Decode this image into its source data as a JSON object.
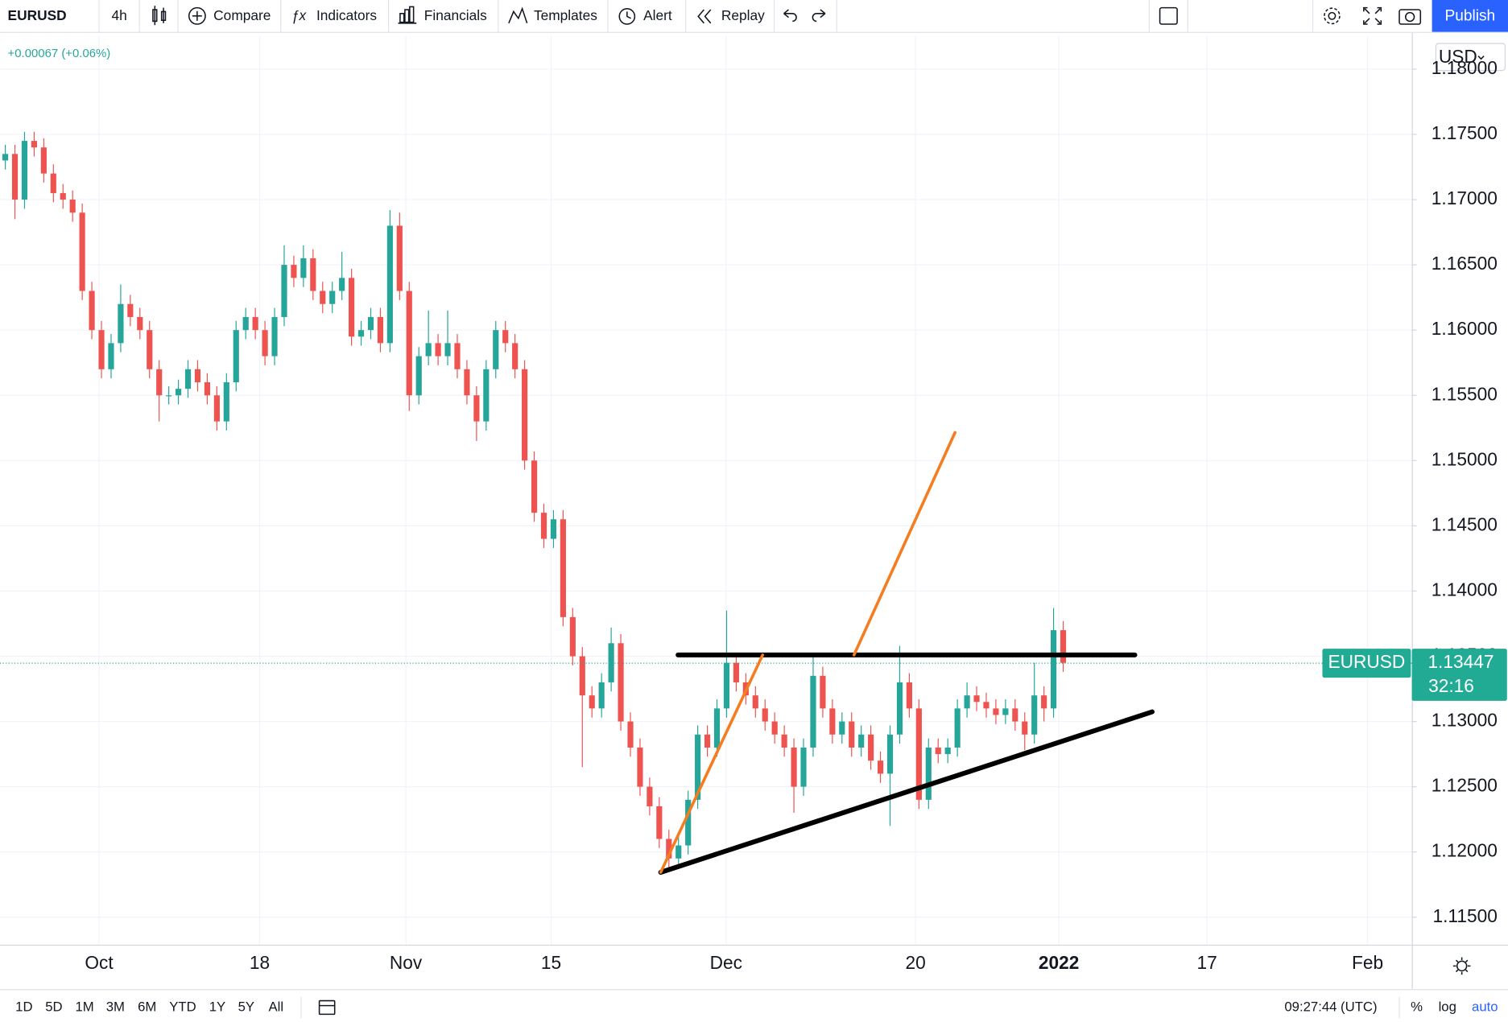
{
  "toolbar": {
    "symbol": "EURUSD",
    "interval": "4h",
    "buttons": [
      "Compare",
      "Indicators",
      "Financials",
      "Templates",
      "Alert",
      "Replay"
    ],
    "publish": "Publish"
  },
  "chart_data": {
    "type": "candlestick",
    "change": "+0.00067 (+0.06%)",
    "currency": "USD",
    "up_color": "#26a69a",
    "down_color": "#ef5350",
    "ohlc": [
      [
        1.173,
        1.1742,
        1.1723,
        1.1735
      ],
      [
        1.1735,
        1.1742,
        1.1685,
        1.17
      ],
      [
        1.17,
        1.1752,
        1.1693,
        1.1745
      ],
      [
        1.1745,
        1.1752,
        1.1733,
        1.174
      ],
      [
        1.174,
        1.1747,
        1.1713,
        1.172
      ],
      [
        1.172,
        1.1727,
        1.1698,
        1.1705
      ],
      [
        1.1705,
        1.1712,
        1.1693,
        1.17
      ],
      [
        1.17,
        1.1707,
        1.1683,
        1.169
      ],
      [
        1.169,
        1.1697,
        1.1623,
        1.163
      ],
      [
        1.163,
        1.1637,
        1.1593,
        1.16
      ],
      [
        1.16,
        1.1607,
        1.1563,
        1.157
      ],
      [
        1.157,
        1.1597,
        1.1563,
        1.159
      ],
      [
        1.159,
        1.1635,
        1.1583,
        1.162
      ],
      [
        1.162,
        1.1627,
        1.1603,
        1.161
      ],
      [
        1.161,
        1.1617,
        1.1593,
        1.16
      ],
      [
        1.16,
        1.1607,
        1.1563,
        1.157
      ],
      [
        1.157,
        1.1577,
        1.153,
        1.155
      ],
      [
        1.155,
        1.1557,
        1.1543,
        1.155
      ],
      [
        1.155,
        1.1562,
        1.1543,
        1.1555
      ],
      [
        1.1555,
        1.1577,
        1.1548,
        1.157
      ],
      [
        1.157,
        1.1577,
        1.1553,
        1.156
      ],
      [
        1.156,
        1.1567,
        1.1543,
        1.155
      ],
      [
        1.155,
        1.1557,
        1.1523,
        1.153
      ],
      [
        1.153,
        1.1567,
        1.1523,
        1.156
      ],
      [
        1.156,
        1.1607,
        1.1553,
        1.16
      ],
      [
        1.16,
        1.1617,
        1.1593,
        1.161
      ],
      [
        1.161,
        1.1617,
        1.1593,
        1.16
      ],
      [
        1.16,
        1.1607,
        1.1573,
        1.158
      ],
      [
        1.158,
        1.1617,
        1.1573,
        1.161
      ],
      [
        1.161,
        1.1665,
        1.1603,
        1.165
      ],
      [
        1.165,
        1.1657,
        1.1633,
        1.164
      ],
      [
        1.164,
        1.1665,
        1.1633,
        1.1655
      ],
      [
        1.1655,
        1.1662,
        1.1623,
        1.163
      ],
      [
        1.163,
        1.1637,
        1.1613,
        1.162
      ],
      [
        1.162,
        1.1637,
        1.1613,
        1.163
      ],
      [
        1.163,
        1.166,
        1.1623,
        1.164
      ],
      [
        1.164,
        1.1647,
        1.1588,
        1.1595
      ],
      [
        1.1595,
        1.1607,
        1.1588,
        1.16
      ],
      [
        1.16,
        1.1617,
        1.1593,
        1.161
      ],
      [
        1.161,
        1.1617,
        1.1583,
        1.159
      ],
      [
        1.159,
        1.1692,
        1.1583,
        1.168
      ],
      [
        1.168,
        1.169,
        1.1623,
        1.163
      ],
      [
        1.163,
        1.1637,
        1.1538,
        1.155
      ],
      [
        1.155,
        1.1587,
        1.1543,
        1.158
      ],
      [
        1.158,
        1.1615,
        1.1573,
        1.159
      ],
      [
        1.159,
        1.1597,
        1.1573,
        1.158
      ],
      [
        1.158,
        1.1615,
        1.1573,
        1.159
      ],
      [
        1.159,
        1.1597,
        1.1563,
        1.157
      ],
      [
        1.157,
        1.1577,
        1.1543,
        1.155
      ],
      [
        1.155,
        1.1557,
        1.1515,
        1.153
      ],
      [
        1.153,
        1.1577,
        1.1523,
        1.157
      ],
      [
        1.157,
        1.1607,
        1.1563,
        1.16
      ],
      [
        1.16,
        1.1607,
        1.1583,
        1.159
      ],
      [
        1.159,
        1.1597,
        1.1563,
        1.157
      ],
      [
        1.157,
        1.1577,
        1.1493,
        1.15
      ],
      [
        1.15,
        1.1507,
        1.1453,
        1.146
      ],
      [
        1.146,
        1.1467,
        1.1433,
        1.144
      ],
      [
        1.144,
        1.1462,
        1.1433,
        1.1455
      ],
      [
        1.1455,
        1.1462,
        1.1373,
        1.138
      ],
      [
        1.138,
        1.1387,
        1.1343,
        1.135
      ],
      [
        1.135,
        1.1357,
        1.1265,
        1.132
      ],
      [
        1.132,
        1.1327,
        1.1303,
        1.131
      ],
      [
        1.131,
        1.1337,
        1.1303,
        1.133
      ],
      [
        1.133,
        1.1372,
        1.1323,
        1.136
      ],
      [
        1.136,
        1.1367,
        1.1293,
        1.13
      ],
      [
        1.13,
        1.1307,
        1.1273,
        1.128
      ],
      [
        1.128,
        1.1287,
        1.1243,
        1.125
      ],
      [
        1.125,
        1.1257,
        1.1228,
        1.1235
      ],
      [
        1.1235,
        1.1242,
        1.1203,
        1.121
      ],
      [
        1.121,
        1.1217,
        1.1185,
        1.1195
      ],
      [
        1.1195,
        1.1212,
        1.1188,
        1.1205
      ],
      [
        1.1205,
        1.1247,
        1.1198,
        1.124
      ],
      [
        1.124,
        1.1297,
        1.1233,
        1.129
      ],
      [
        1.129,
        1.1297,
        1.1273,
        1.128
      ],
      [
        1.128,
        1.1317,
        1.1273,
        1.131
      ],
      [
        1.131,
        1.1385,
        1.1303,
        1.1345
      ],
      [
        1.1345,
        1.1352,
        1.1323,
        1.133
      ],
      [
        1.133,
        1.1337,
        1.1313,
        1.132
      ],
      [
        1.132,
        1.1327,
        1.1303,
        1.131
      ],
      [
        1.131,
        1.1317,
        1.1293,
        1.13
      ],
      [
        1.13,
        1.1307,
        1.1283,
        1.129
      ],
      [
        1.129,
        1.1297,
        1.1273,
        1.128
      ],
      [
        1.128,
        1.1287,
        1.123,
        1.125
      ],
      [
        1.125,
        1.1287,
        1.1243,
        1.128
      ],
      [
        1.128,
        1.135,
        1.1273,
        1.1335
      ],
      [
        1.1335,
        1.1342,
        1.1303,
        1.131
      ],
      [
        1.131,
        1.1317,
        1.1283,
        1.129
      ],
      [
        1.129,
        1.1307,
        1.1283,
        1.13
      ],
      [
        1.13,
        1.1307,
        1.1273,
        1.128
      ],
      [
        1.128,
        1.1297,
        1.1273,
        1.129
      ],
      [
        1.129,
        1.1297,
        1.1263,
        1.127
      ],
      [
        1.127,
        1.1277,
        1.1253,
        1.126
      ],
      [
        1.126,
        1.1297,
        1.122,
        1.129
      ],
      [
        1.129,
        1.1358,
        1.1283,
        1.133
      ],
      [
        1.133,
        1.1337,
        1.1303,
        1.131
      ],
      [
        1.131,
        1.1317,
        1.1233,
        1.124
      ],
      [
        1.124,
        1.1287,
        1.1233,
        1.128
      ],
      [
        1.128,
        1.1287,
        1.1268,
        1.1275
      ],
      [
        1.1275,
        1.1287,
        1.1268,
        1.128
      ],
      [
        1.128,
        1.1317,
        1.1273,
        1.131
      ],
      [
        1.131,
        1.133,
        1.1303,
        1.132
      ],
      [
        1.132,
        1.1327,
        1.1308,
        1.1315
      ],
      [
        1.1315,
        1.1322,
        1.1303,
        1.131
      ],
      [
        1.131,
        1.1317,
        1.1298,
        1.1305
      ],
      [
        1.1305,
        1.1317,
        1.1298,
        1.131
      ],
      [
        1.131,
        1.1317,
        1.1293,
        1.13
      ],
      [
        1.13,
        1.1307,
        1.1278,
        1.129
      ],
      [
        1.129,
        1.1345,
        1.1283,
        1.132
      ],
      [
        1.132,
        1.1327,
        1.13,
        1.131
      ],
      [
        1.131,
        1.1387,
        1.1303,
        1.137
      ],
      [
        1.137,
        1.1377,
        1.1338,
        1.1345
      ]
    ],
    "xlim": [
      -0.5,
      146.3
    ],
    "xticks": [
      {
        "value": 9.8,
        "label": "Oct"
      },
      {
        "value": 26.5,
        "label": "18"
      },
      {
        "value": 41.7,
        "label": "Nov"
      },
      {
        "value": 56.8,
        "label": "15"
      },
      {
        "value": 75,
        "label": "Dec"
      },
      {
        "value": 94.7,
        "label": "20"
      },
      {
        "value": 109.6,
        "label": "2022"
      },
      {
        "value": 125,
        "label": "17"
      },
      {
        "value": 141.7,
        "label": "Feb"
      }
    ],
    "ylim": [
      1.11289,
      1.18256
    ],
    "yticks": [
      {
        "value": 1.115,
        "label": "1.11500"
      },
      {
        "value": 1.12,
        "label": "1.12000"
      },
      {
        "value": 1.125,
        "label": "1.12500"
      },
      {
        "value": 1.13,
        "label": "1.13000"
      },
      {
        "value": 1.135,
        "label": "1.13500"
      },
      {
        "value": 1.14,
        "label": "1.14000"
      },
      {
        "value": 1.145,
        "label": "1.14500"
      },
      {
        "value": 1.15,
        "label": "1.15000"
      },
      {
        "value": 1.155,
        "label": "1.15500"
      },
      {
        "value": 1.16,
        "label": "1.16000"
      },
      {
        "value": 1.165,
        "label": "1.16500"
      },
      {
        "value": 1.17,
        "label": "1.17000"
      },
      {
        "value": 1.175,
        "label": "1.17500"
      },
      {
        "value": 1.18,
        "label": "1.18000"
      }
    ],
    "grid": true,
    "last_price": {
      "symbol": "EURUSD",
      "value": 1.13447,
      "countdown": "32:16",
      "color": "#22ab94"
    },
    "drawings": [
      {
        "color": "#000000",
        "points": [
          [
            70,
            1.1351
          ],
          [
            117.5,
            1.1351
          ]
        ]
      },
      {
        "color": "#000000",
        "points": [
          [
            68.2,
            1.11844
          ],
          [
            119.3,
            1.13074
          ]
        ]
      },
      {
        "color": "#f57c1f",
        "points": [
          [
            68.2,
            1.11844
          ],
          [
            78.8,
            1.1351
          ]
        ]
      },
      {
        "color": "#f57c1f",
        "points": [
          [
            88.3,
            1.1351
          ],
          [
            98.8,
            1.15215
          ]
        ]
      }
    ]
  },
  "bottom_bar": {
    "ranges": [
      "1D",
      "5D",
      "1M",
      "3M",
      "6M",
      "YTD",
      "1Y",
      "5Y",
      "All"
    ],
    "time": "09:27:44 (UTC)",
    "scale_options": [
      "%",
      "log",
      "auto"
    ]
  }
}
